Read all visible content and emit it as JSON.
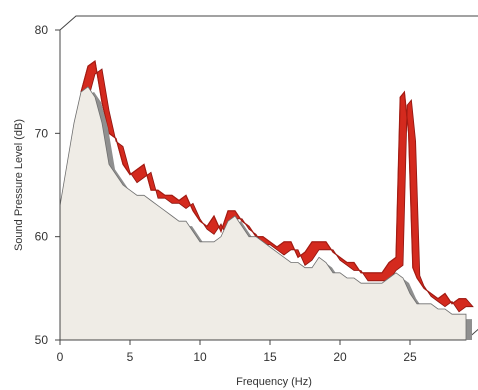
{
  "chart_data": {
    "type": "area",
    "title": "",
    "xlabel": "Frequency (Hz)",
    "ylabel": "Sound Pressure Level (dB)",
    "xlim": [
      0,
      29
    ],
    "ylim": [
      50,
      80
    ],
    "xticks": [
      0,
      5,
      10,
      15,
      20,
      25
    ],
    "yticks": [
      50,
      60,
      70,
      80
    ],
    "grid": false,
    "legend": "none",
    "colors": {
      "back_series": "#d42a1e",
      "front_series": "#efece6",
      "shadow": "#8f8f8f"
    },
    "series": [
      {
        "x": [
          1.5,
          2,
          2.5,
          3,
          3.5,
          4,
          4.5,
          5,
          5.5,
          6,
          6.5,
          7,
          7.5,
          8,
          8.5,
          9,
          9.5,
          10,
          10.5,
          11,
          11.5,
          12,
          12.5,
          13,
          13.5,
          14,
          14.5,
          15,
          15.5,
          16,
          16.5,
          17,
          17.5,
          18,
          18.5,
          19,
          19.5,
          20,
          20.5,
          21,
          21.5,
          22,
          22.5,
          23,
          23.5,
          24,
          24.3,
          24.6,
          24.9,
          25.2,
          25.5,
          26,
          26.5,
          27,
          27.5,
          28,
          28.5,
          29
        ],
        "values": [
          74,
          76.5,
          77,
          73,
          70,
          69.5,
          67,
          66,
          66.5,
          67,
          64.5,
          64.5,
          64,
          64,
          63.5,
          64,
          62.5,
          61.5,
          61,
          62,
          60.5,
          62.5,
          62.5,
          61.5,
          61,
          60,
          60,
          59.5,
          59,
          59.5,
          59.5,
          58,
          58.5,
          59.5,
          59.5,
          59.5,
          58.5,
          58,
          57.5,
          57.5,
          56.5,
          56.5,
          56.5,
          56.5,
          57.5,
          58,
          73.5,
          74,
          70,
          57,
          56,
          55,
          54.5,
          54,
          54.5,
          53.5,
          54,
          54
        ]
      },
      {
        "x": [
          0,
          0.5,
          1,
          1.5,
          2,
          2.5,
          3,
          3.5,
          4,
          4.5,
          5,
          5.5,
          6,
          6.5,
          7,
          7.5,
          8,
          8.5,
          9,
          9.5,
          10,
          10.5,
          11,
          11.5,
          12,
          12.5,
          13,
          13.5,
          14,
          14.5,
          15,
          15.5,
          16,
          16.5,
          17,
          17.5,
          18,
          18.5,
          19,
          19.5,
          20,
          20.5,
          21,
          21.5,
          22,
          22.5,
          23,
          23.5,
          24,
          24.5,
          25,
          25.5,
          26,
          26.5,
          27,
          27.5,
          28,
          28.5,
          29
        ],
        "values": [
          63,
          67,
          71,
          74,
          74.5,
          73.5,
          71,
          67,
          66,
          65,
          64.5,
          64,
          64,
          63.5,
          63,
          62.5,
          62,
          61.5,
          61.5,
          60.5,
          59.5,
          59.5,
          59.5,
          60,
          61.5,
          62,
          61,
          60,
          60,
          59.5,
          59,
          58.5,
          58,
          57.5,
          57.5,
          57,
          57,
          58,
          57.5,
          56.5,
          56.5,
          56,
          56,
          55.5,
          55.5,
          55.5,
          55.5,
          56,
          56.5,
          56,
          54.5,
          53.5,
          53.5,
          53.5,
          53,
          53,
          52.5,
          52.5,
          52.5
        ]
      }
    ]
  }
}
